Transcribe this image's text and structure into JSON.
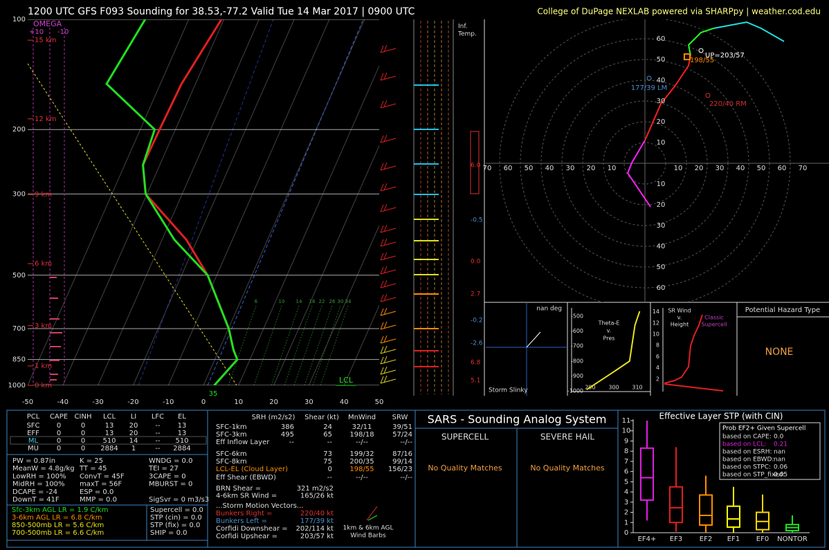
{
  "header": {
    "title": "1200 UTC GFS F093 Sounding for 38.53,-77.2 Valid  Tue 14 Mar 2017 | 0900 UTC",
    "credit": "College of DuPage NEXLAB powered via SHARPpy | weather.cod.edu"
  },
  "skewt": {
    "pressure_ticks": [
      100,
      200,
      300,
      500,
      700,
      850,
      1000
    ],
    "temp_ticks": [
      -50,
      -40,
      -30,
      -20,
      -10,
      0,
      10,
      20,
      30,
      40,
      50
    ],
    "omega_label": "OMEGA",
    "omega_ticks": [
      "+10",
      "-10"
    ],
    "heights": [
      {
        "label": "15 km",
        "pressure": 114
      },
      {
        "label": "12 km",
        "pressure": 187
      },
      {
        "label": "9 km",
        "pressure": 301
      },
      {
        "label": "6 km",
        "pressure": 465
      },
      {
        "label": "3 km",
        "pressure": 687
      },
      {
        "label": "1 km",
        "pressure": 885
      },
      {
        "label": "0 km",
        "pressure": 1000
      }
    ],
    "mixing_ratio_labels": [
      "6",
      "10",
      "14",
      "18",
      "22",
      "26",
      "30",
      "34"
    ],
    "lcl_label": "LCL",
    "sfc_label": "35",
    "temperature": {
      "pressure": [
        1000,
        850,
        800,
        700,
        500,
        400,
        300,
        250,
        200,
        150,
        100
      ],
      "values": [
        3.1,
        6.4,
        4.1,
        0.1,
        -12.6,
        -23.1,
        -40.4,
        -44.8,
        -44.5,
        -44.0,
        -40.7
      ]
    },
    "dewpoint": {
      "pressure": [
        1000,
        850,
        800,
        700,
        500,
        400,
        300,
        250,
        200,
        150,
        100
      ],
      "values": [
        3.1,
        6.4,
        4.1,
        0.1,
        -12.6,
        -26.5,
        -40.4,
        -44.8,
        -45.9,
        -65.3,
        -62.4
      ]
    }
  },
  "inflection": {
    "title": [
      "Inf.",
      "Temp."
    ],
    "values": [
      "6.0",
      "-0.5",
      "0.0",
      "2.7",
      "-0.2",
      "-2.6",
      "6.8",
      "5.1"
    ]
  },
  "hodograph": {
    "ring_ticks": [
      10,
      20,
      30,
      40,
      50,
      60,
      70
    ],
    "series": [
      {
        "color": "#ff20ff",
        "u": [
          2.7,
          -8.3,
          -6.3,
          0
        ],
        "v": [
          -21,
          -4.7,
          0.3,
          11
        ]
      },
      {
        "color": "#ff2020",
        "u": [
          0,
          7.7,
          14.3,
          21,
          22
        ],
        "v": [
          11,
          28.7,
          37,
          47,
          52
        ]
      },
      {
        "color": "#20ff20",
        "u": [
          22,
          21,
          27,
          33
        ],
        "v": [
          52,
          57,
          63,
          65
        ]
      },
      {
        "color": "#20e0e0",
        "u": [
          33,
          49,
          56,
          67
        ],
        "v": [
          65,
          68,
          65,
          58.7
        ]
      }
    ],
    "markers": [
      {
        "label": "UP=203/57",
        "u": 27,
        "v": 54.3,
        "color": "#ffffff"
      },
      {
        "label": "198/55",
        "u": 20.3,
        "v": 51.3,
        "color": "#ff8c00"
      },
      {
        "label": "177/39 LM",
        "u": 2,
        "v": 41,
        "color": "#4a90d0"
      },
      {
        "label": "220/40 RM",
        "u": 30.3,
        "v": 32.7,
        "color": "#d03030"
      }
    ]
  },
  "slinky": {
    "direction": "nan deg",
    "title": "Storm Slinky"
  },
  "theta_e": {
    "title": [
      "Theta-E",
      "v.",
      "Pres"
    ],
    "pressure_ticks": [
      {
        "value": 500,
        "label": "-500"
      },
      {
        "value": 600,
        "label": "-600"
      },
      {
        "value": 700,
        "label": "-700"
      },
      {
        "value": 800,
        "label": "-800"
      },
      {
        "value": 900,
        "label": "-900"
      },
      {
        "value": 1000,
        "label": "-1000"
      }
    ],
    "theta_ticks": [
      290,
      300,
      310
    ],
    "profile": {
      "pressure": [
        991,
        894,
        801,
        560,
        467
      ],
      "values": [
        288.5,
        297.9,
        306.7,
        309,
        311
      ]
    }
  },
  "sr_wind": {
    "title": [
      "SR Wind",
      "v.",
      "Height"
    ],
    "label": [
      "Classic",
      "Supercell"
    ],
    "height_ticks": [
      2,
      4,
      6,
      8,
      10,
      12,
      14
    ]
  },
  "hazard": {
    "title": "Potential Hazard Type",
    "value": "NONE"
  },
  "parcels": {
    "header": [
      "PCL",
      "CAPE",
      "CINH",
      "LCL",
      "LI",
      "LFC",
      "EL"
    ],
    "rows": [
      [
        "SFC",
        "0",
        "0",
        "13",
        "20",
        "--",
        "13"
      ],
      [
        "EFF",
        "0",
        "0",
        "13",
        "20",
        "--",
        "13"
      ],
      [
        "ML",
        "0",
        "0",
        "510",
        "14",
        "--",
        "510"
      ],
      [
        "MU",
        "0",
        "0",
        "2884",
        "1",
        "--",
        "2884"
      ]
    ]
  },
  "indices": {
    "col1": [
      "PW = 0.87in",
      "MeanW = 4.8g/kg",
      "LowRH = 100%",
      "MidRH = 100%",
      "DCAPE = -24",
      "DownT = 41F"
    ],
    "col2": [
      "K = 25",
      "TT = 45",
      "ConvT = 45F",
      "maxT = 56F",
      "ESP = 0.0",
      "MMP = 0.0"
    ],
    "col3": [
      "WNDG = 0.0",
      "TEI = 27",
      "3CAPE = 0",
      "MBURST = 0"
    ],
    "sigsvr": "SigSvr = 0 m3/s3"
  },
  "lapse_rates": [
    "Sfc-3km AGL LR = 1.9 C/km",
    "3-6km AGL LR = 6.8 C/km",
    "850-500mb LR = 5.6 C/km",
    "700-500mb LR = 6.6 C/km"
  ],
  "composites": [
    "Supercell = 0.0",
    "STP (cin) = 0.0",
    "STP (fix) = 0.0",
    "SHIP = 0.0"
  ],
  "kinematics": {
    "header": [
      "SRH (m2/s2)",
      "Shear (kt)",
      "MnWind",
      "SRW"
    ],
    "rows": [
      [
        "SFC-1km",
        "386",
        "24",
        "32/11",
        "39/51"
      ],
      [
        "SFC-3km",
        "495",
        "65",
        "198/18",
        "57/24"
      ],
      [
        "Eff Inflow Layer",
        "--",
        "--",
        "--/--",
        "--/--"
      ],
      [
        "SFC-6km",
        null,
        "73",
        "199/32",
        "87/16"
      ],
      [
        "SFC-8km",
        null,
        "75",
        "200/35",
        "99/14"
      ],
      [
        "LCL-EL (Cloud Layer)",
        null,
        "0",
        "198/55",
        "156/23"
      ],
      [
        "Eff Shear (EBWD)",
        null,
        "--",
        "--/--",
        "--/--"
      ]
    ],
    "extras": [
      {
        "label": "BRN Shear =",
        "value": "321 m2/s2"
      },
      {
        "label": "4-6km SR Wind =",
        "value": "165/26 kt"
      }
    ],
    "heading": "...Storm Motion Vectors...",
    "vectors": [
      {
        "label": "Bunkers Right =",
        "value": "220/40 kt"
      },
      {
        "label": "Bunkers Left =",
        "value": "177/39 kt"
      },
      {
        "label": "Corfidi Downshear =",
        "value": "202/114 kt"
      },
      {
        "label": "Corfidi Upshear =",
        "value": "203/57 kt"
      }
    ],
    "barb_label": [
      "1km & 6km AGL",
      "Wind Barbs"
    ]
  },
  "sars": {
    "title": "SARS - Sounding Analog System",
    "supercell": "SUPERCELL",
    "hail": "SEVERE HAIL",
    "supercell_result": "No Quality Matches",
    "hail_result": "No Quality Matches"
  },
  "stp": {
    "type": "box",
    "title": "Effective Layer STP (with CIN)",
    "ylim": [
      0,
      11
    ],
    "yticks": [
      0,
      1,
      2,
      3,
      4,
      5,
      6,
      7,
      8,
      9,
      10,
      11
    ],
    "categories": [
      "EF4+",
      "EF3",
      "EF2",
      "EF1",
      "EF0",
      "NONTOR"
    ],
    "colors": [
      "#e020e0",
      "#e02020",
      "#ff8c00",
      "#ffff00",
      "#ffd700",
      "#20e020"
    ],
    "low": [
      1.2,
      0.1,
      0,
      0,
      0,
      0
    ],
    "q1": [
      3.2,
      1.0,
      0.75,
      0.55,
      0.3,
      0.2
    ],
    "median": [
      5.4,
      2.45,
      1.7,
      1.35,
      1.1,
      0.5
    ],
    "q3": [
      8.3,
      4.5,
      3.7,
      2.6,
      2.0,
      0.8
    ],
    "high": [
      11,
      8.4,
      5.6,
      4.5,
      3.75,
      1.7
    ],
    "prob_title": "Prob EF2+ Given Supercell",
    "prob": [
      [
        "based on CAPE:",
        "0.0"
      ],
      [
        "based on LCL:",
        "0.21"
      ],
      [
        "based on ESRH:",
        "nan"
      ],
      [
        "based on EBWD:",
        "nan"
      ],
      [
        "based on STPC:",
        "0.06"
      ],
      [
        "based on STP_fixed:",
        "0.05"
      ]
    ]
  }
}
